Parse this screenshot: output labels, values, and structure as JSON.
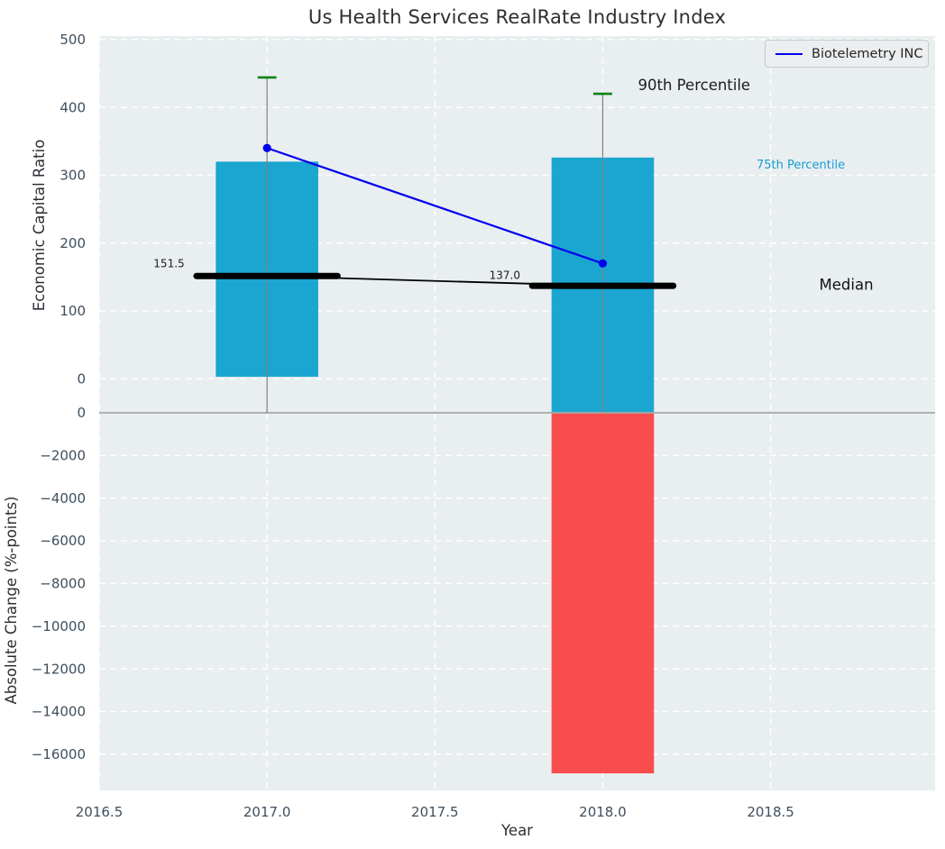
{
  "title": "Us Health Services RealRate Industry Index",
  "legend": {
    "label": "Biotelemetry INC"
  },
  "colors": {
    "panel_bg": "#e9eef0",
    "grid": "#ffffff",
    "bar_blue": "#09a0ce",
    "bar_red": "#fb3b3b",
    "series_line": "#0000ee",
    "cap_green": "#0a8314",
    "whisker": "#7f7f7f",
    "median": "#000000",
    "boundary": "#a8a8a8",
    "tick_text": "#3e4f5e",
    "axis_label_text": "#2b3035",
    "title_text": "#2e2e2e"
  },
  "x_axis": {
    "label": "Year",
    "tick_values": [
      2016.5,
      2017.0,
      2017.5,
      2018.0,
      2018.5
    ],
    "tick_labels": [
      "2016.5",
      "2017.0",
      "2017.5",
      "2018.0",
      "2018.5"
    ],
    "xlim": [
      2016.5,
      2018.99
    ]
  },
  "chart_data": [
    {
      "type": "bar",
      "panel": "top",
      "title": "Us Health Services RealRate Industry Index",
      "ylabel": "Economic Capital Ratio",
      "xlabel": "Year",
      "ytick_values": [
        0,
        100,
        200,
        300,
        400,
        500
      ],
      "ytick_labels": [
        "0",
        "100",
        "200",
        "300",
        "400",
        "500"
      ],
      "ylim": [
        -50,
        505
      ],
      "grid": true,
      "legend_position": "upper right",
      "years": [
        2017,
        2018
      ],
      "percentile_90": [
        444,
        420
      ],
      "percentile_75": [
        320,
        326
      ],
      "percentile_25": [
        3,
        -60
      ],
      "median": [
        151.5,
        137.0
      ],
      "median_labels": [
        "151.5",
        "137.0"
      ],
      "series": [
        {
          "name": "Biotelemetry INC",
          "x": [
            2017,
            2018
          ],
          "values": [
            340,
            170
          ]
        }
      ],
      "bar_width_years": 0.305,
      "median_width_years": 0.42,
      "cap_width_years": 0.056,
      "annotations": [
        {
          "text": "90th Percentile",
          "x": 2018.105,
          "y": 433,
          "color": "#1c1c1c",
          "size": 16.5
        },
        {
          "text": "75th Percentile",
          "x": 2018.458,
          "y": 316,
          "color": "#189ed3",
          "size": 13
        },
        {
          "text": "Median",
          "x": 2018.645,
          "y": 139,
          "color": "#111111",
          "size": 16.5
        },
        {
          "text": "151.5",
          "x": 2016.662,
          "y": 170,
          "color": "#1c1c1c",
          "size": 12
        },
        {
          "text": "137.0",
          "x": 2017.662,
          "y": 153,
          "color": "#1c1c1c",
          "size": 12
        }
      ]
    },
    {
      "type": "bar",
      "panel": "bottom",
      "ylabel": "Absolute Change (%-points)",
      "ytick_values": [
        0,
        -2000,
        -4000,
        -6000,
        -8000,
        -10000,
        -12000,
        -14000,
        -16000
      ],
      "ytick_labels": [
        "0",
        "−2000",
        "−4000",
        "−6000",
        "−8000",
        "−10000",
        "−12000",
        "−14000",
        "−16000"
      ],
      "ylim": [
        -17700,
        0
      ],
      "grid": true,
      "categories": [
        2018
      ],
      "values": [
        -16900
      ]
    }
  ]
}
